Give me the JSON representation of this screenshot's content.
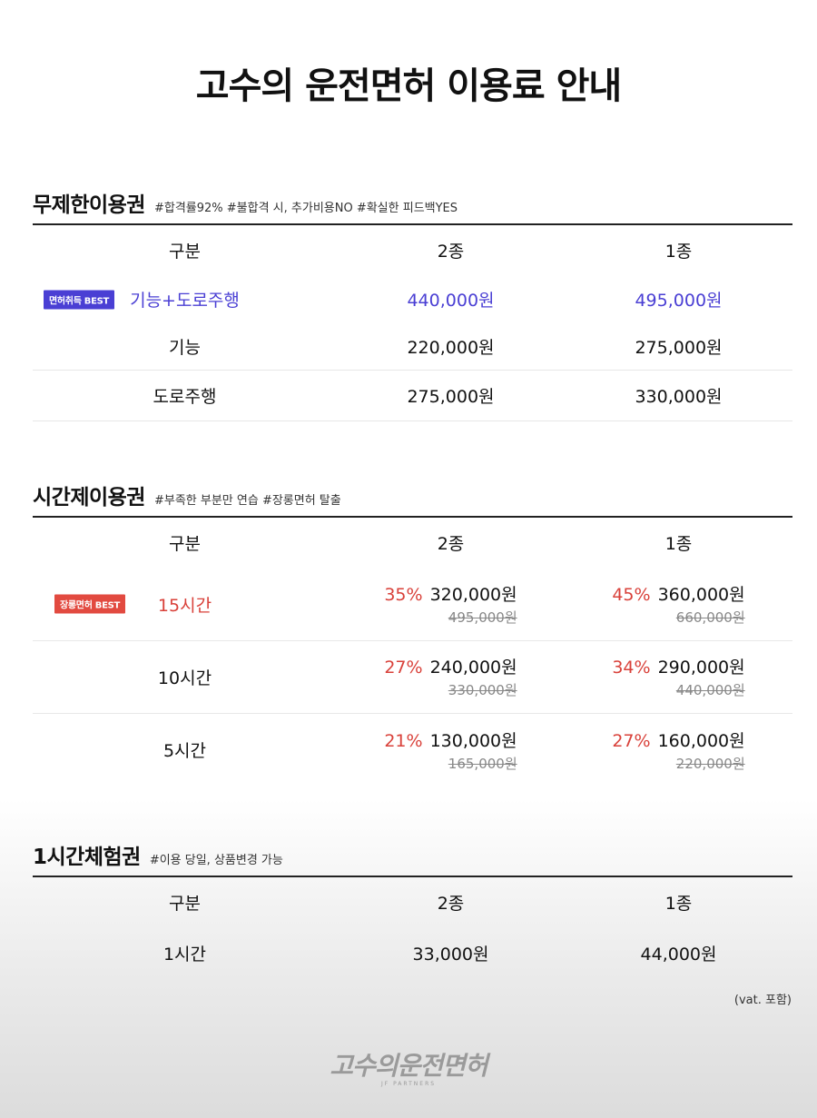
{
  "page": {
    "title": "고수의 운전면허 이용료 안내"
  },
  "unlimited": {
    "title": "무제한이용권",
    "tags": "#합격률92%  #불합격 시, 추가비용NO  #확실한 피드백YES",
    "header": [
      "구분",
      "2종",
      "1종"
    ],
    "rows": [
      {
        "badge": "면허취득 BEST",
        "name": "기능+도로주행",
        "p2": "440,000원",
        "p1": "495,000원"
      },
      {
        "name": "기능",
        "p2": "220,000원",
        "p1": "275,000원"
      },
      {
        "name": "도로주행",
        "p2": "275,000원",
        "p1": "330,000원"
      }
    ]
  },
  "hourly": {
    "title": "시간제이용권",
    "tags": "#부족한 부분만 연습 #장롱면허 탈출",
    "header": [
      "구분",
      "2종",
      "1종"
    ],
    "rows": [
      {
        "badge": "장롱면허 BEST",
        "name": "15시간",
        "d2": "35%",
        "p2": "320,000원",
        "o2": "495,000원",
        "d1": "45%",
        "p1": "360,000원",
        "o1": "660,000원"
      },
      {
        "name": "10시간",
        "d2": "27%",
        "p2": "240,000원",
        "o2": "330,000원",
        "d1": "34%",
        "p1": "290,000원",
        "o1": "440,000원"
      },
      {
        "name": "5시간",
        "d2": "21%",
        "p2": "130,000원",
        "o2": "165,000원",
        "d1": "27%",
        "p1": "160,000원",
        "o1": "220,000원"
      }
    ]
  },
  "trial": {
    "title": "1시간체험권",
    "tags": "#이용 당일, 상품변경 가능",
    "header": [
      "구분",
      "2종",
      "1종"
    ],
    "rows": [
      {
        "name": "1시간",
        "p2": "33,000원",
        "p1": "44,000원"
      }
    ]
  },
  "footer": {
    "vat": "(vat. 포함)",
    "logo_text": "고수의운전면허",
    "logo_sub": "JF PARTNERS"
  }
}
